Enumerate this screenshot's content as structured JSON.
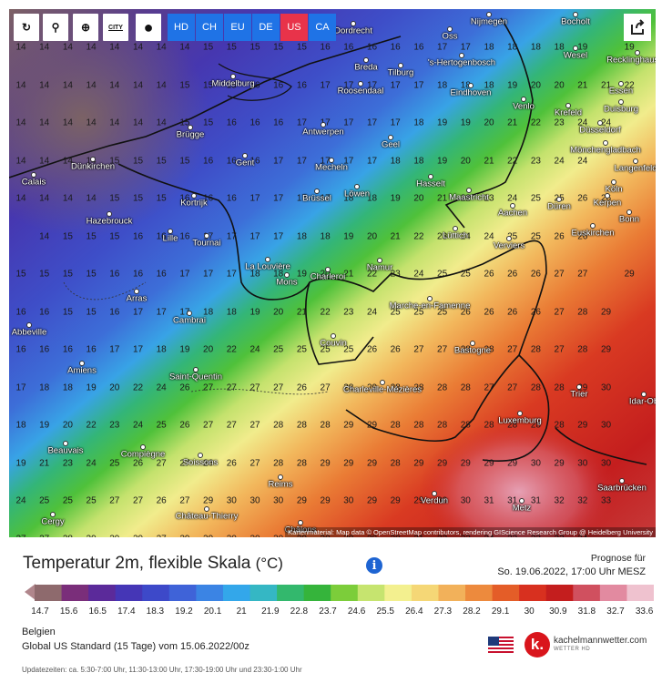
{
  "toolbar": {
    "tools": [
      {
        "name": "refresh-icon",
        "glyph": "↻"
      },
      {
        "name": "location-pin-icon",
        "glyph": "⚲"
      },
      {
        "name": "zoom-icon",
        "glyph": "⊕"
      },
      {
        "name": "city-icon",
        "glyph": "CITY"
      },
      {
        "name": "circle-toggle-icon",
        "glyph": "●"
      }
    ],
    "regions": [
      {
        "label": "HD",
        "color": "#1f73e6"
      },
      {
        "label": "CH",
        "color": "#1f73e6"
      },
      {
        "label": "EU",
        "color": "#1f73e6"
      },
      {
        "label": "DE",
        "color": "#1f73e6"
      },
      {
        "label": "US",
        "color": "#e8334a"
      },
      {
        "label": "CA",
        "color": "#1f73e6"
      }
    ],
    "share_icon": "share-icon"
  },
  "map": {
    "attribution": "Kartenmaterial: Map data © OpenStreetMap contributors, rendering GIScience Research Group @ Heidelberg University",
    "cities": [
      {
        "name": "Dordrecht"
      },
      {
        "name": "Nijmegen"
      },
      {
        "name": "Oss"
      },
      {
        "name": "Bocholt"
      },
      {
        "name": "Breda"
      },
      {
        "name": "Tilburg"
      },
      {
        "name": "'s-Hertogenbosch"
      },
      {
        "name": "Wesel"
      },
      {
        "name": "Recklinghausen"
      },
      {
        "name": "Middelburg"
      },
      {
        "name": "Roosendaal"
      },
      {
        "name": "Eindhoven"
      },
      {
        "name": "Venlo"
      },
      {
        "name": "Essen"
      },
      {
        "name": "Krefeld"
      },
      {
        "name": "Duisburg"
      },
      {
        "name": "Antwerpen"
      },
      {
        "name": "Düsseldorf"
      },
      {
        "name": "Brügge"
      },
      {
        "name": "Geel"
      },
      {
        "name": "Mönchengladbach"
      },
      {
        "name": "Gent"
      },
      {
        "name": "Mecheln"
      },
      {
        "name": "Langenfeld"
      },
      {
        "name": "Dünkirchen"
      },
      {
        "name": "Hasselt"
      },
      {
        "name": "Köln"
      },
      {
        "name": "Calais"
      },
      {
        "name": "Brüssel"
      },
      {
        "name": "Löwen"
      },
      {
        "name": "Maastricht"
      },
      {
        "name": "Kortrijk"
      },
      {
        "name": "Aachen"
      },
      {
        "name": "Düren"
      },
      {
        "name": "Kerpen"
      },
      {
        "name": "Bonn"
      },
      {
        "name": "Hazebrouck"
      },
      {
        "name": "Lüttich"
      },
      {
        "name": "Euskirchen"
      },
      {
        "name": "Lille"
      },
      {
        "name": "Tournai"
      },
      {
        "name": "Verviers"
      },
      {
        "name": "La Louvière"
      },
      {
        "name": "Mons"
      },
      {
        "name": "Charleroi"
      },
      {
        "name": "Namur"
      },
      {
        "name": "Arras"
      },
      {
        "name": "Marche-en-Famenne"
      },
      {
        "name": "Abbeville"
      },
      {
        "name": "Cambrai"
      },
      {
        "name": "Couvin"
      },
      {
        "name": "Bastogne"
      },
      {
        "name": "Amiens"
      },
      {
        "name": "Saint-Quentin"
      },
      {
        "name": "Charleville-Mézières"
      },
      {
        "name": "Trier"
      },
      {
        "name": "Idar-Ob"
      },
      {
        "name": "Luxemburg"
      },
      {
        "name": "Beauvais"
      },
      {
        "name": "Compiègne"
      },
      {
        "name": "Soissons"
      },
      {
        "name": "Reims"
      },
      {
        "name": "Verdun"
      },
      {
        "name": "Saarbrücken"
      },
      {
        "name": "Metz"
      },
      {
        "name": "Cergy"
      },
      {
        "name": "Château-Thierry"
      },
      {
        "name": "Châlons"
      }
    ],
    "value_rows": [
      {
        "cols": [
          14,
          14,
          14,
          14,
          14,
          14,
          14,
          14,
          15,
          15,
          15,
          15,
          15,
          16,
          16,
          16,
          16,
          16,
          17,
          17,
          18,
          18,
          18,
          18,
          19,
          "",
          19
        ]
      },
      {
        "cols": [
          14,
          14,
          14,
          14,
          14,
          14,
          14,
          15,
          15,
          15,
          16,
          16,
          16,
          17,
          17,
          17,
          17,
          17,
          18,
          18,
          18,
          19,
          20,
          20,
          21,
          21,
          22
        ]
      },
      {
        "cols": [
          14,
          14,
          14,
          14,
          14,
          14,
          14,
          15,
          15,
          16,
          16,
          16,
          17,
          17,
          17,
          17,
          17,
          18,
          19,
          19,
          20,
          21,
          22,
          23,
          24,
          24,
          "",
          ""
        ]
      },
      {
        "cols": [
          14,
          14,
          14,
          14,
          15,
          15,
          15,
          15,
          16,
          16,
          16,
          17,
          17,
          17,
          17,
          17,
          18,
          18,
          19,
          20,
          21,
          22,
          23,
          24,
          24,
          "",
          ""
        ]
      },
      {
        "cols": [
          14,
          14,
          14,
          14,
          15,
          15,
          15,
          16,
          16,
          16,
          17,
          17,
          17,
          17,
          18,
          18,
          19,
          20,
          21,
          22,
          23,
          24,
          25,
          25,
          26,
          26,
          ""
        ]
      },
      {
        "cols": [
          "",
          14,
          15,
          15,
          15,
          16,
          16,
          16,
          17,
          17,
          17,
          17,
          18,
          18,
          19,
          20,
          21,
          22,
          23,
          24,
          24,
          25,
          25,
          26,
          26,
          "",
          ""
        ]
      },
      {
        "cols": [
          15,
          15,
          15,
          15,
          16,
          16,
          16,
          17,
          17,
          17,
          18,
          18,
          19,
          20,
          21,
          22,
          23,
          24,
          25,
          25,
          26,
          26,
          26,
          27,
          27,
          "",
          29
        ]
      },
      {
        "cols": [
          16,
          16,
          15,
          15,
          16,
          17,
          17,
          17,
          18,
          18,
          19,
          20,
          21,
          22,
          23,
          24,
          25,
          25,
          25,
          26,
          26,
          26,
          26,
          27,
          28,
          29,
          ""
        ]
      },
      {
        "cols": [
          16,
          16,
          16,
          16,
          17,
          17,
          18,
          19,
          20,
          22,
          24,
          25,
          25,
          25,
          25,
          26,
          26,
          27,
          27,
          28,
          28,
          27,
          28,
          27,
          28,
          29,
          ""
        ]
      },
      {
        "cols": [
          17,
          18,
          18,
          19,
          20,
          22,
          24,
          26,
          27,
          27,
          27,
          27,
          26,
          27,
          28,
          29,
          28,
          28,
          28,
          28,
          27,
          27,
          28,
          28,
          29,
          30,
          ""
        ]
      },
      {
        "cols": [
          18,
          19,
          20,
          22,
          23,
          24,
          25,
          26,
          27,
          27,
          27,
          28,
          28,
          28,
          29,
          29,
          28,
          28,
          28,
          28,
          28,
          28,
          28,
          28,
          29,
          30,
          ""
        ]
      },
      {
        "cols": [
          19,
          21,
          23,
          24,
          25,
          26,
          27,
          27,
          26,
          26,
          27,
          28,
          28,
          29,
          29,
          29,
          28,
          29,
          29,
          29,
          29,
          29,
          30,
          29,
          30,
          30,
          ""
        ]
      },
      {
        "cols": [
          24,
          25,
          25,
          25,
          27,
          27,
          26,
          27,
          29,
          30,
          30,
          30,
          29,
          29,
          30,
          29,
          29,
          29,
          30,
          30,
          31,
          31,
          31,
          32,
          32,
          33,
          ""
        ]
      },
      {
        "cols": [
          27,
          27,
          28,
          29,
          29,
          29,
          27,
          29,
          29,
          30,
          30,
          30,
          30,
          30,
          30,
          30,
          30,
          31,
          32,
          32,
          34,
          33,
          33,
          33,
          34,
          "",
          ""
        ]
      }
    ]
  },
  "legend": {
    "title": "Temperatur 2m, flexible Skala",
    "unit": "(°C)",
    "info_icon": "info-icon",
    "forecast_label": "Prognose für",
    "forecast_time": "So. 19.06.2022, 17:00 Uhr MESZ",
    "ticks": [
      "14.7",
      "15.6",
      "16.5",
      "17.4",
      "18.3",
      "19.2",
      "20.1",
      "21",
      "21.9",
      "22.8",
      "23.7",
      "24.6",
      "25.5",
      "26.4",
      "27.3",
      "28.2",
      "29.1",
      "30",
      "30.9",
      "31.8",
      "32.7",
      "33.6"
    ],
    "colors": [
      "#8e6a6d",
      "#7a2e7a",
      "#5b2a9a",
      "#4536b6",
      "#3d49c9",
      "#3f63d8",
      "#3b84e4",
      "#33a7ea",
      "#35b7c4",
      "#33b86d",
      "#35b43b",
      "#7ccd3a",
      "#c6e46f",
      "#f3f08f",
      "#f5d776",
      "#f2b15a",
      "#ed8a3d",
      "#e45d28",
      "#d8301f",
      "#c41e1e",
      "#d0505f",
      "#e28aa0",
      "#efc2cf"
    ],
    "region": "Belgien",
    "model": "Global US Standard (15 Tage) vom 15.06.2022/00z",
    "updates": "Updatezeiten: ca. 5:30-7:00 Uhr, 11:30-13:00 Uhr, 17:30-19:00 Uhr und 23:30-1:00 Uhr",
    "brand": "kachelmannwetter.com",
    "brand_sub": "WETTER HD",
    "brand_logo_letter": "k."
  }
}
